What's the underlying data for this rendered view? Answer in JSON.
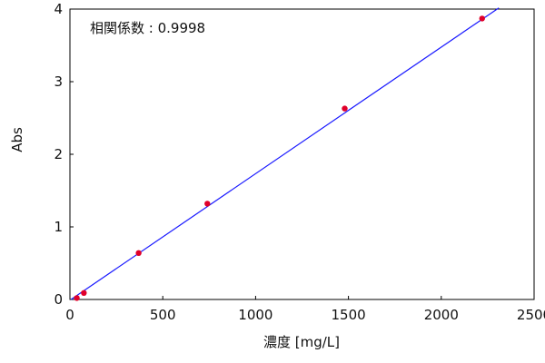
{
  "chart_data": {
    "type": "scatter",
    "xlabel": "濃度 [mg/L]",
    "ylabel": "Abs",
    "xlim": [
      0,
      2500
    ],
    "ylim": [
      0,
      4
    ],
    "xticks": [
      0,
      500,
      1000,
      1500,
      2000,
      2500
    ],
    "yticks": [
      0,
      1,
      2,
      3,
      4
    ],
    "grid": false,
    "annotation": "相関係数 : 0.9998",
    "series": [
      {
        "color": "#e0002a",
        "points": [
          {
            "x": 37,
            "y": 0.02
          },
          {
            "x": 75,
            "y": 0.09
          },
          {
            "x": 370,
            "y": 0.64
          },
          {
            "x": 740,
            "y": 1.32
          },
          {
            "x": 1480,
            "y": 2.63
          },
          {
            "x": 2220,
            "y": 3.87
          }
        ]
      }
    ],
    "fit_line": {
      "color": "#1a1aff",
      "slope": 0.001743,
      "intercept": -0.01,
      "x_range": [
        0,
        2310
      ]
    }
  }
}
